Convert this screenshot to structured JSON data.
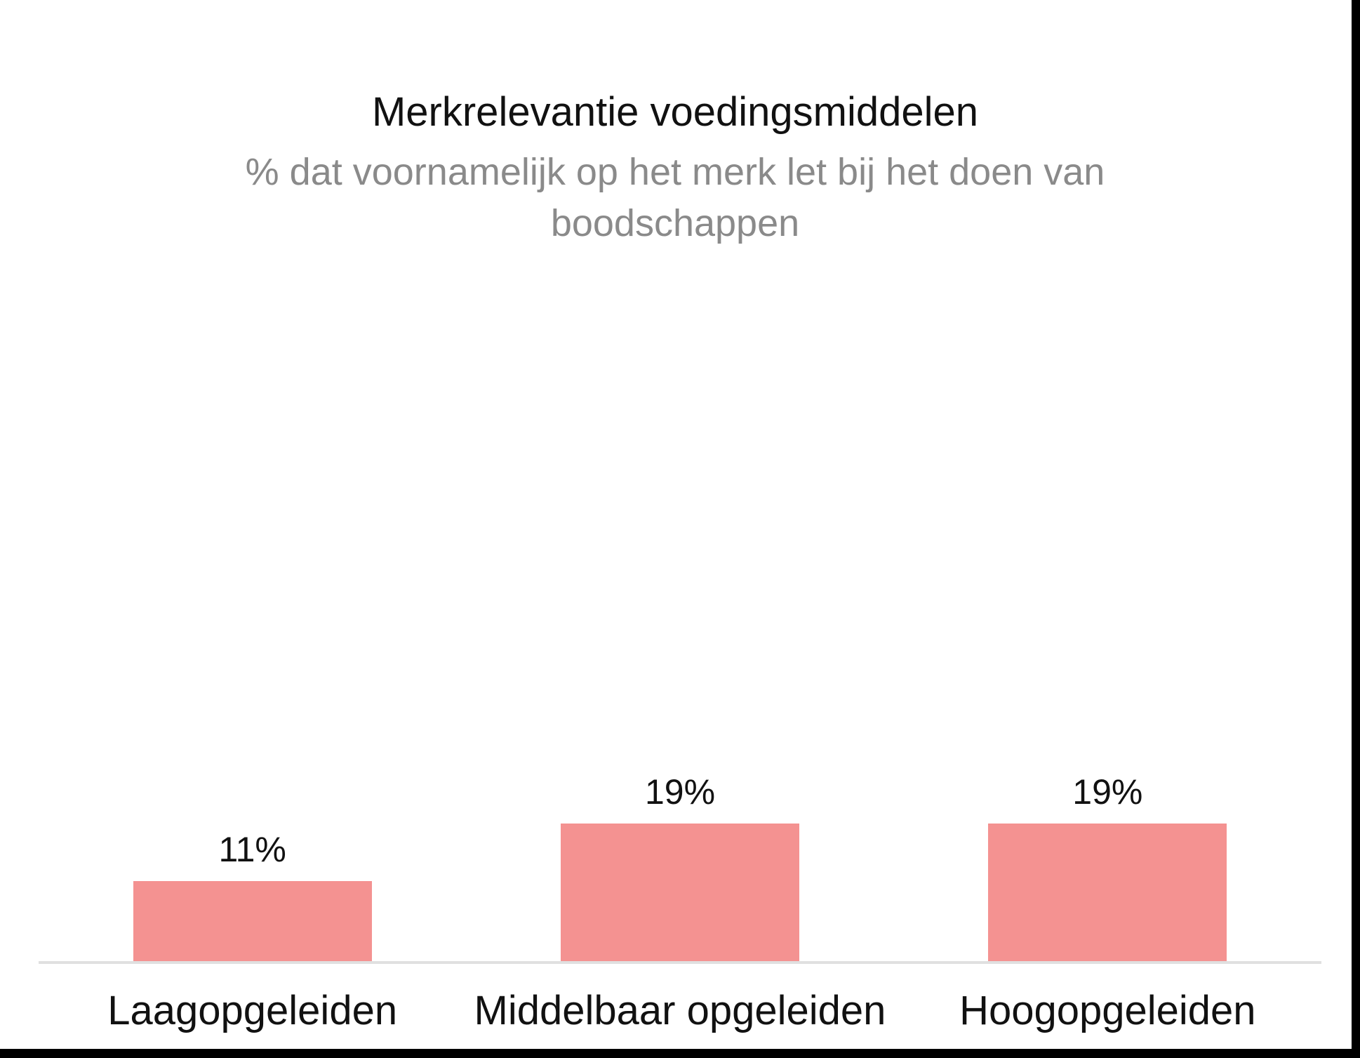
{
  "page": {
    "background": "#FFFFFF",
    "edge_color": "#000000"
  },
  "chart_data": {
    "type": "bar",
    "title": "Merkrelevantie voedingsmiddelen",
    "subtitle": "% dat voornamelijk op het merk let bij het doen van boodschappen",
    "categories": [
      "Laagopgeleiden",
      "Middelbaar opgeleiden",
      "Hoogopgeleiden"
    ],
    "values": [
      11,
      19,
      19
    ],
    "value_labels": [
      "11%",
      "19%",
      "19%"
    ],
    "unit": "%",
    "ylim": [
      0,
      26
    ],
    "grid": false,
    "legend": false,
    "bar_color": "#F49291",
    "axis_color": "#E0E0E0",
    "title_color": "#111111",
    "subtitle_color": "#8A8A8A",
    "label_color": "#111111"
  }
}
